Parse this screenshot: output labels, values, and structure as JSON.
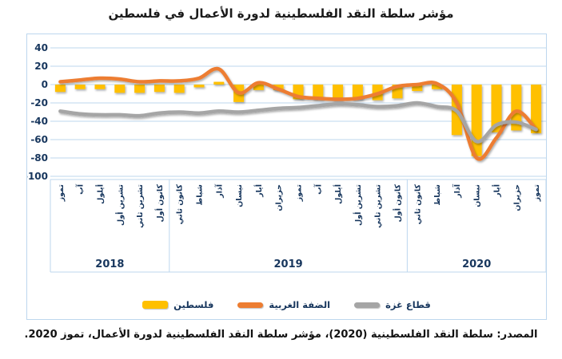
{
  "title": "مؤشر سلطة النقد الفلسطينية لدورة الأعمال في فلسطين",
  "source": "المصدر: سلطة النقد الفلسطينية (2020)، مؤشر سلطة النقد الفلسطينية لدورة الأعمال، تموز 2020.",
  "chart_data": {
    "type": "combo-bar-line",
    "title": "مؤشر سلطة النقد الفلسطينية لدورة الأعمال في فلسطين",
    "x_groups": [
      {
        "year": "2018",
        "months": [
          "تموز",
          "آب",
          "أيلول",
          "تشرين أول",
          "تشرين ثاني",
          "كانون أول"
        ]
      },
      {
        "year": "2019",
        "months": [
          "كانون ثاني",
          "شباط",
          "آذار",
          "نيسان",
          "أيار",
          "حزيران",
          "تموز",
          "آب",
          "أيلول",
          "تشرين أول",
          "تشرين ثاني",
          "كانون أول"
        ]
      },
      {
        "year": "2020",
        "months": [
          "كانون ثاني",
          "شباط",
          "آذار",
          "نيسان",
          "أيار",
          "حزيران",
          "تموز"
        ]
      }
    ],
    "y_axis": {
      "ticks": [
        40,
        20,
        0,
        -20,
        -40,
        -60,
        -80,
        -100
      ],
      "min": -100,
      "max": 40
    },
    "series": [
      {
        "name": "فلسطين",
        "type": "bar",
        "color": "#FFC000",
        "values": [
          -8,
          -5,
          -5,
          -9,
          -9,
          -8,
          -9,
          -3,
          3,
          -19,
          -6,
          -6,
          -16,
          -16,
          -17,
          -16,
          -17,
          -15,
          -7,
          -5,
          -55,
          -78,
          -52,
          -50,
          -53
        ]
      },
      {
        "name": "الضفة الغربية",
        "type": "line",
        "color": "#ED7D31",
        "values": [
          3,
          5,
          7,
          6,
          3,
          4,
          4,
          7,
          17,
          -9,
          2,
          -5,
          -13,
          -15,
          -16,
          -15,
          -10,
          -2,
          0,
          1,
          -20,
          -80,
          -58,
          -29,
          -49
        ]
      },
      {
        "name": "قطاع غزة",
        "type": "line",
        "color": "#A5A5A5",
        "values": [
          -29,
          -32,
          -33,
          -33,
          -34,
          -31,
          -30,
          -31,
          -29,
          -30,
          -28,
          -26,
          -25,
          -23,
          -21,
          -22,
          -24,
          -23,
          -20,
          -24,
          -29,
          -62,
          -44,
          -41,
          -49
        ]
      }
    ],
    "grid_color": "#BDD7EE",
    "axis_text_color": "#17365D",
    "legend_position": "bottom",
    "grid": "horizontal"
  }
}
